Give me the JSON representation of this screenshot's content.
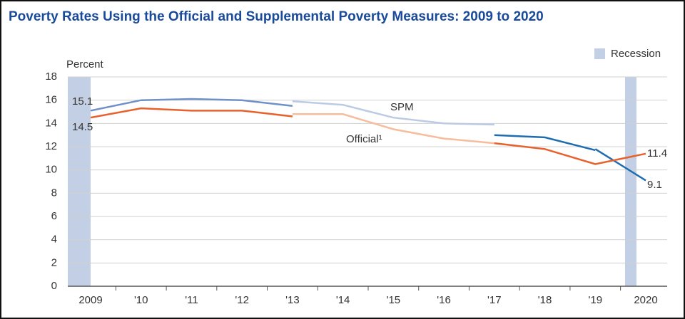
{
  "chart_data": {
    "type": "line",
    "title": "Poverty Rates Using the Official and Supplemental Poverty Measures: 2009 to 2020",
    "y_label": "Percent",
    "legend": "Recession",
    "categories": [
      "2009",
      "'10",
      "'11",
      "'12",
      "'13",
      "'14",
      "'15",
      "'16",
      "'17",
      "'18",
      "'19",
      "2020"
    ],
    "ylim": [
      0,
      18
    ],
    "yticks": [
      0,
      2,
      4,
      6,
      8,
      10,
      12,
      14,
      16,
      18
    ],
    "grid": true,
    "series": [
      {
        "name": "SPM",
        "pieces": [
          {
            "color": "#6f90c8",
            "values": [
              15.1,
              16.0,
              16.1,
              16.0,
              15.5,
              null,
              null,
              null,
              null,
              null,
              null,
              null
            ]
          },
          {
            "color": "#bccbe5",
            "values": [
              null,
              null,
              null,
              null,
              15.9,
              15.6,
              14.5,
              14.0,
              13.9,
              null,
              null,
              null
            ]
          },
          {
            "color": "#1f6db0",
            "values": [
              null,
              null,
              null,
              null,
              null,
              null,
              null,
              null,
              13.0,
              12.8,
              11.7,
              null
            ]
          },
          {
            "color": "#1f6db0",
            "values": [
              null,
              null,
              null,
              null,
              null,
              null,
              null,
              null,
              null,
              null,
              11.8,
              9.1
            ]
          }
        ]
      },
      {
        "name": "Official¹",
        "pieces": [
          {
            "color": "#e8612c",
            "values": [
              14.5,
              15.3,
              15.1,
              15.1,
              14.6,
              null,
              null,
              null,
              null,
              null,
              null,
              null
            ]
          },
          {
            "color": "#f6bc9c",
            "values": [
              null,
              null,
              null,
              null,
              14.8,
              14.8,
              13.5,
              12.7,
              12.3,
              null,
              null,
              null
            ]
          },
          {
            "color": "#e8612c",
            "values": [
              null,
              null,
              null,
              null,
              null,
              null,
              null,
              null,
              12.3,
              11.8,
              10.5,
              11.4
            ]
          }
        ]
      }
    ]
  }
}
